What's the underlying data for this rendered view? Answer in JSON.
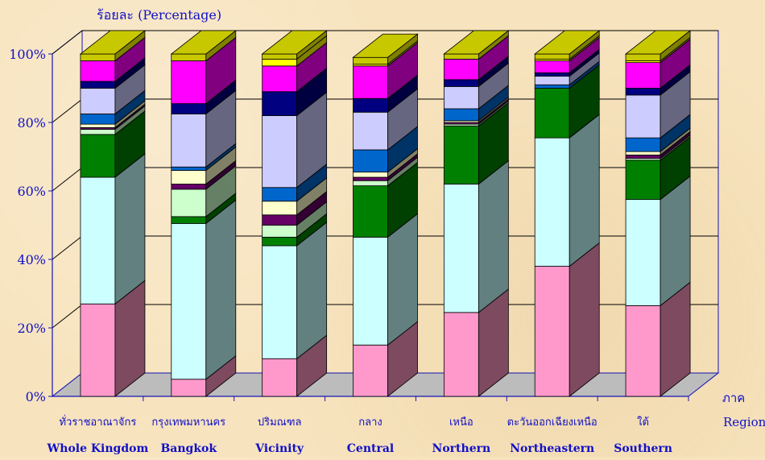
{
  "chart_data": {
    "type": "bar",
    "stacked": true,
    "three_d": true,
    "ylabel": "ร้อยละ (Percentage)",
    "xlabel_th": "ภาค",
    "xlabel_en": "Region",
    "ylim": [
      0,
      100
    ],
    "y_ticks": [
      "0%",
      "20%",
      "40%",
      "60%",
      "80%",
      "100%"
    ],
    "grid": true,
    "categories_th": [
      "ทั่วราชอาณาจักร",
      "กรุงเทพมหานคร",
      "ปริมณฑล",
      "กลาง",
      "เหนือ",
      "ตะวันออกเฉียงเหนือ",
      "ใต้"
    ],
    "categories_en": [
      "Whole Kingdom",
      "Bangkok",
      "Vicinity",
      "Central",
      "Northern",
      "Northeastern",
      "Southern"
    ],
    "segment_colors": [
      {
        "front": "#ff99cc",
        "side": "#7d4a60"
      },
      {
        "front": "#ccffff",
        "side": "#62807f"
      },
      {
        "front": "#008000",
        "side": "#004000"
      },
      {
        "front": "#ccffcc",
        "side": "#668066"
      },
      {
        "front": "#660066",
        "side": "#330033"
      },
      {
        "front": "#ffffcc",
        "side": "#808066"
      },
      {
        "front": "#0066cc",
        "side": "#003366"
      },
      {
        "front": "#ccccff",
        "side": "#666680"
      },
      {
        "front": "#000080",
        "side": "#000040"
      },
      {
        "front": "#ff00ff",
        "side": "#800080"
      },
      {
        "front": "#ffff00",
        "side": "#808000"
      },
      {
        "front": "#c8c800",
        "side": "#808000"
      }
    ],
    "series": [
      {
        "values": [
          27,
          5,
          11,
          15,
          24.5,
          38,
          26.5
        ]
      },
      {
        "values": [
          37,
          45.5,
          33,
          31.5,
          37.5,
          37.5,
          31
        ]
      },
      {
        "values": [
          12.5,
          2,
          2.5,
          15,
          17,
          14.5,
          11.5
        ]
      },
      {
        "values": [
          1.5,
          8,
          3.5,
          1.5,
          0.5,
          0,
          0.5
        ]
      },
      {
        "values": [
          0.5,
          1.5,
          3,
          1,
          0.5,
          0,
          1
        ]
      },
      {
        "values": [
          1,
          4,
          4,
          1.5,
          0.5,
          0,
          1
        ]
      },
      {
        "values": [
          3,
          1,
          4,
          6.5,
          3.5,
          1,
          4
        ]
      },
      {
        "values": [
          7.5,
          15.5,
          21,
          11,
          6.5,
          2.5,
          12.5
        ]
      },
      {
        "values": [
          2,
          3,
          7,
          4,
          2,
          1,
          2
        ]
      },
      {
        "values": [
          6,
          12.5,
          7.5,
          9.5,
          6,
          3.5,
          7.5
        ]
      },
      {
        "values": [
          0,
          0,
          2,
          0.5,
          0,
          0.5,
          0.5
        ]
      },
      {
        "values": [
          2,
          2,
          2,
          2,
          2,
          2,
          2
        ]
      }
    ]
  }
}
